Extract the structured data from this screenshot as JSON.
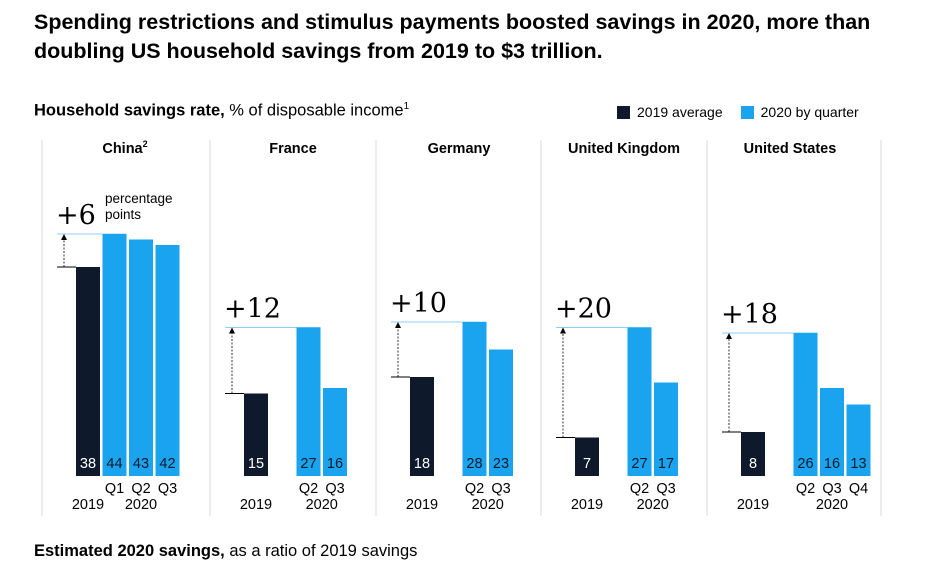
{
  "title": "Spending restrictions and stimulus payments boosted savings in 2020, more than doubling US household savings from 2019 to $3 trillion.",
  "subtitle_bold": "Household savings rate,",
  "subtitle_rest": " % of disposable income",
  "subtitle_sup": "1",
  "footer_bold": "Estimated 2020 savings,",
  "footer_rest": " as a ratio of 2019 savings",
  "legend": [
    {
      "label": "2019 average",
      "color": "#0e1a2b"
    },
    {
      "label": "2020 by quarter",
      "color": "#1aa3ef"
    }
  ],
  "colors": {
    "baseline": "#0e1a2b",
    "quarter": "#1aa3ef",
    "guide": "#8fd0f5",
    "divider": "#d9d9d9"
  },
  "chart_data": [
    {
      "type": "bar",
      "title": "China",
      "title_sup": "2",
      "categories": [
        "2019",
        "Q1",
        "Q2",
        "Q3"
      ],
      "values": [
        38,
        44,
        43,
        42
      ],
      "year_label": "2020",
      "change": "+6",
      "change_note": "percentage points"
    },
    {
      "type": "bar",
      "title": "France",
      "categories": [
        "2019",
        "Q2",
        "Q3"
      ],
      "values": [
        15,
        27,
        16
      ],
      "year_label": "2020",
      "change": "+12"
    },
    {
      "type": "bar",
      "title": "Germany",
      "categories": [
        "2019",
        "Q2",
        "Q3"
      ],
      "values": [
        18,
        28,
        23
      ],
      "year_label": "2020",
      "change": "+10"
    },
    {
      "type": "bar",
      "title": "United Kingdom",
      "categories": [
        "2019",
        "Q2",
        "Q3"
      ],
      "values": [
        7,
        27,
        17
      ],
      "year_label": "2020",
      "change": "+20"
    },
    {
      "type": "bar",
      "title": "United States",
      "categories": [
        "2019",
        "Q2",
        "Q3",
        "Q4"
      ],
      "values": [
        8,
        26,
        16,
        13
      ],
      "year_label": "2020",
      "change": "+18"
    }
  ]
}
